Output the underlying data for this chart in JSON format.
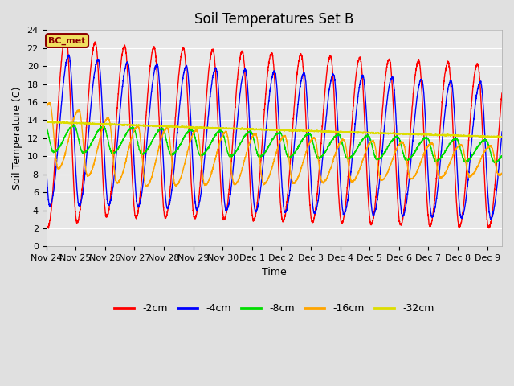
{
  "title": "Soil Temperatures Set B",
  "xlabel": "Time",
  "ylabel": "Soil Temperature (C)",
  "ylim": [
    0,
    24
  ],
  "yticks": [
    0,
    2,
    4,
    6,
    8,
    10,
    12,
    14,
    16,
    18,
    20,
    22,
    24
  ],
  "annotation": "BC_met",
  "series_colors": {
    "-2cm": "#ff0000",
    "-4cm": "#0000ff",
    "-8cm": "#00dd00",
    "-16cm": "#ffa500",
    "-32cm": "#dddd00"
  },
  "series_labels": [
    "-2cm",
    "-4cm",
    "-8cm",
    "-16cm",
    "-32cm"
  ],
  "fig_bg": "#e0e0e0",
  "plot_bg": "#e8e8e8",
  "grid_color": "#ffffff",
  "n_days": 16,
  "title_fontsize": 12,
  "axis_label_fontsize": 9,
  "tick_fontsize": 8
}
